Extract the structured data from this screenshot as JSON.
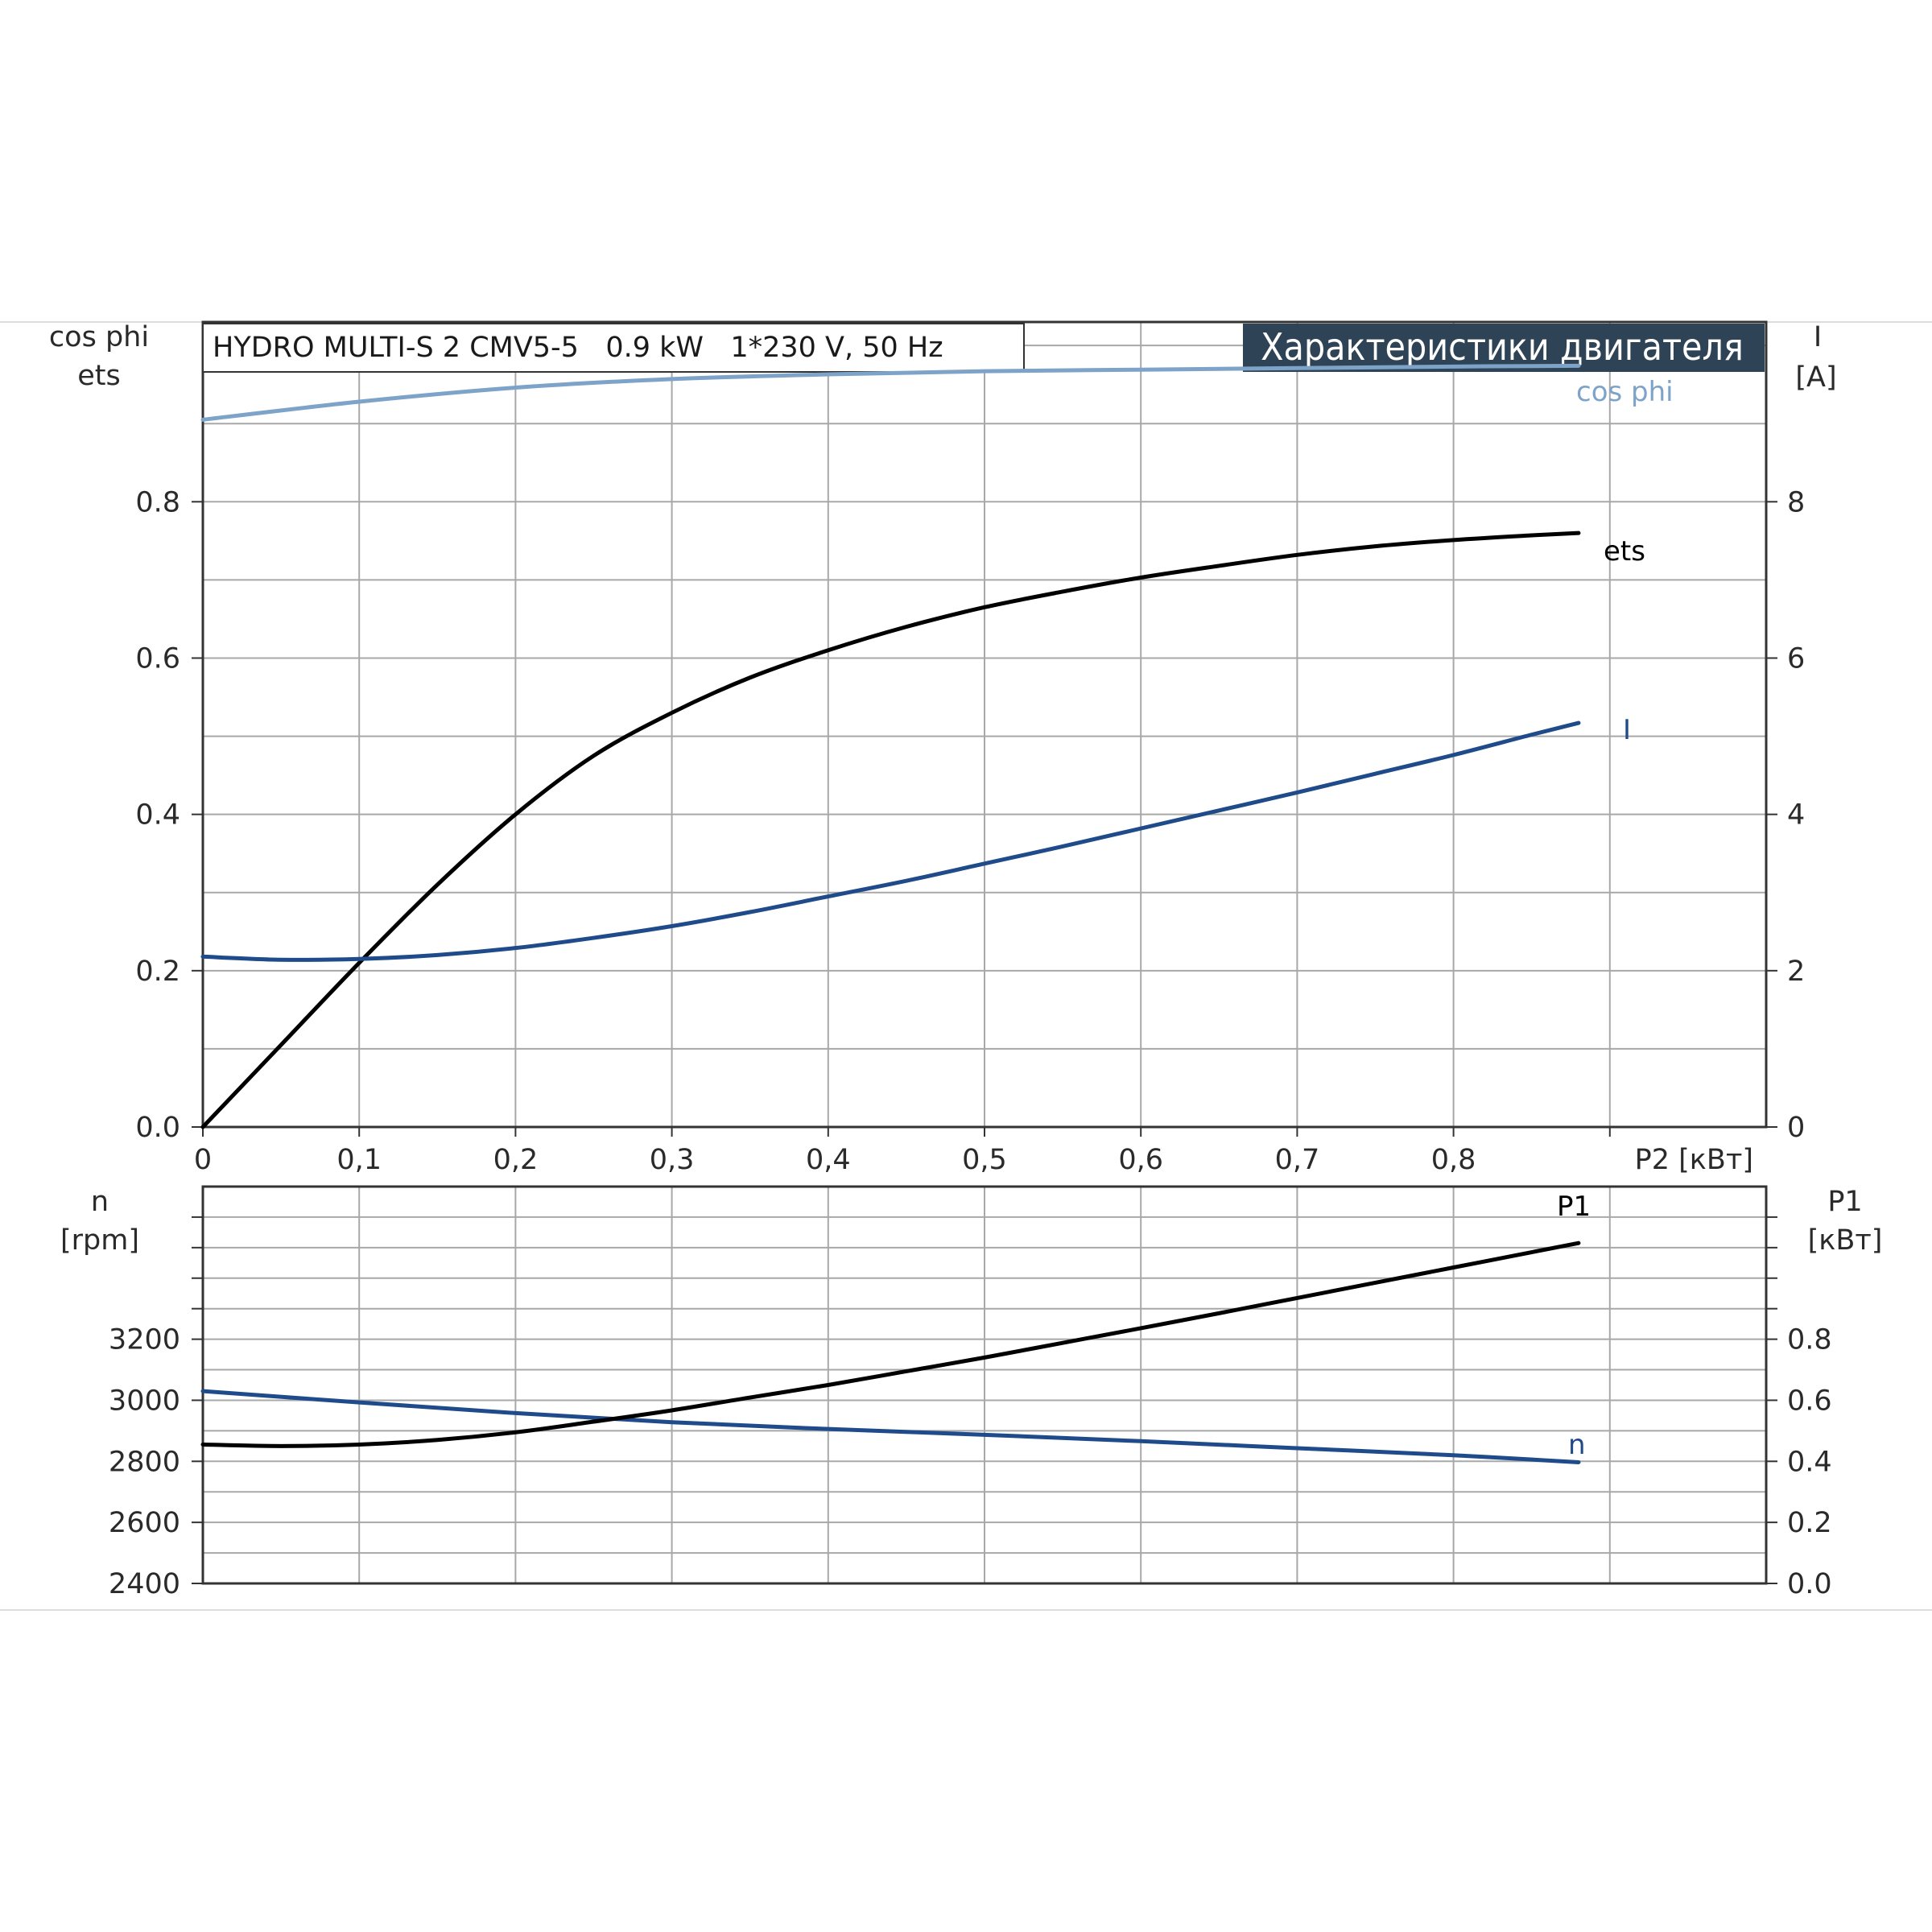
{
  "page": {
    "model_caption": "HYDRO MULTI-S 2 CMV5-5   0.9 kW   1*230 V, 50 Hz",
    "banner_title": "Характеристики двигателя"
  },
  "colors": {
    "cos_phi": "#7ea3c8",
    "ets": "#000000",
    "I": "#1f4b8a",
    "n": "#1f4b8a",
    "P1": "#000000",
    "banner_bg": "#2f4356",
    "grid": "#a8a8a8"
  },
  "chart_data": [
    {
      "id": "upper",
      "type": "line",
      "x_label": "P2 [кВт]",
      "x_ticks": [
        "0",
        "0,1",
        "0,2",
        "0,3",
        "0,4",
        "0,5",
        "0,6",
        "0,7",
        "0,8"
      ],
      "xlim": [
        0,
        1.0
      ],
      "left_axis": {
        "label_line1": "cos phi",
        "label_line2": "ets",
        "ticks": [
          "0.0",
          "0.2",
          "0.4",
          "0.6",
          "0.8"
        ],
        "ylim": [
          0,
          1.03
        ]
      },
      "right_axis": {
        "label_line1": "I",
        "label_line2": "[A]",
        "ticks": [
          "0",
          "2",
          "4",
          "6",
          "8"
        ],
        "ylim": [
          0,
          10.3
        ]
      },
      "grid": true,
      "series": [
        {
          "name": "cos phi",
          "axis": "left",
          "x": [
            0,
            0.1,
            0.2,
            0.3,
            0.4,
            0.5,
            0.6,
            0.7,
            0.8,
            0.88
          ],
          "y": [
            0.905,
            0.928,
            0.946,
            0.957,
            0.963,
            0.967,
            0.969,
            0.971,
            0.973,
            0.974
          ]
        },
        {
          "name": "ets",
          "axis": "left",
          "x": [
            0,
            0.05,
            0.1,
            0.15,
            0.2,
            0.25,
            0.3,
            0.35,
            0.4,
            0.45,
            0.5,
            0.55,
            0.6,
            0.65,
            0.7,
            0.75,
            0.8,
            0.85,
            0.88
          ],
          "y": [
            0.0,
            0.105,
            0.21,
            0.31,
            0.4,
            0.475,
            0.53,
            0.575,
            0.61,
            0.64,
            0.665,
            0.685,
            0.703,
            0.718,
            0.732,
            0.743,
            0.751,
            0.757,
            0.76
          ]
        },
        {
          "name": "I",
          "axis": "right",
          "x": [
            0,
            0.05,
            0.1,
            0.15,
            0.2,
            0.25,
            0.3,
            0.35,
            0.4,
            0.45,
            0.5,
            0.55,
            0.6,
            0.65,
            0.7,
            0.75,
            0.8,
            0.85,
            0.88
          ],
          "y": [
            2.18,
            2.14,
            2.15,
            2.2,
            2.29,
            2.42,
            2.57,
            2.75,
            2.95,
            3.15,
            3.37,
            3.59,
            3.82,
            4.05,
            4.28,
            4.52,
            4.76,
            5.02,
            5.17
          ]
        }
      ]
    },
    {
      "id": "lower",
      "type": "line",
      "xlim": [
        0,
        1.0
      ],
      "left_axis": {
        "label_line1": "n",
        "label_line2": "[rpm]",
        "ticks": [
          "2400",
          "2600",
          "2800",
          "3000",
          "3200"
        ],
        "ylim": [
          2400,
          3700
        ]
      },
      "right_axis": {
        "label_line1": "P1",
        "label_line2": "[кВт]",
        "ticks": [
          "0.0",
          "0.2",
          "0.4",
          "0.6",
          "0.8"
        ],
        "ylim": [
          0,
          1.3
        ]
      },
      "grid": true,
      "series": [
        {
          "name": "n",
          "axis": "left",
          "x": [
            0,
            0.1,
            0.2,
            0.3,
            0.4,
            0.5,
            0.6,
            0.7,
            0.8,
            0.88
          ],
          "y": [
            3030,
            2993,
            2958,
            2928,
            2906,
            2887,
            2866,
            2843,
            2820,
            2797
          ]
        },
        {
          "name": "P1",
          "axis": "right",
          "x": [
            0,
            0.05,
            0.1,
            0.15,
            0.2,
            0.25,
            0.3,
            0.35,
            0.4,
            0.45,
            0.5,
            0.55,
            0.6,
            0.65,
            0.7,
            0.75,
            0.8,
            0.85,
            0.88
          ],
          "y": [
            0.455,
            0.45,
            0.455,
            0.47,
            0.495,
            0.53,
            0.567,
            0.609,
            0.65,
            0.695,
            0.74,
            0.788,
            0.836,
            0.885,
            0.935,
            0.985,
            1.035,
            1.085,
            1.115
          ]
        }
      ]
    }
  ]
}
